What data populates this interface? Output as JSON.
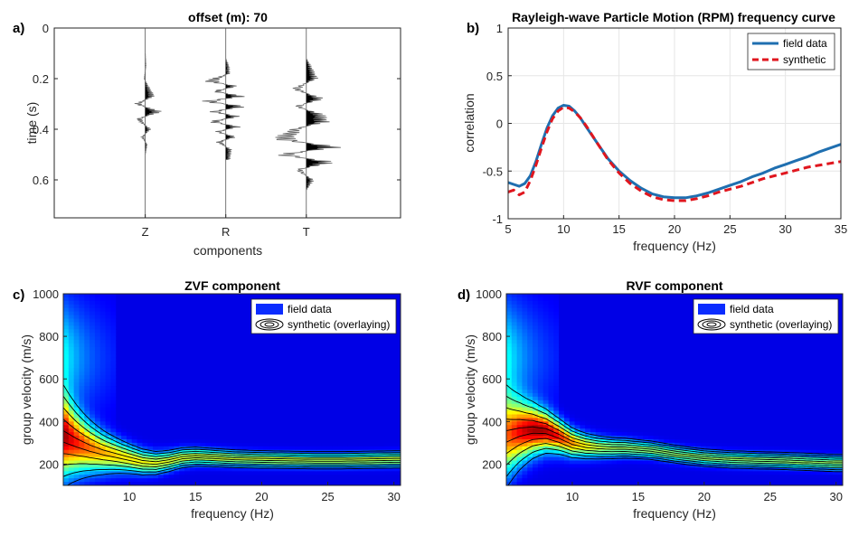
{
  "chart_data": [
    {
      "type": "line",
      "panel_label": "a)",
      "title": "offset (m): 70",
      "xlabel": "components",
      "ylabel": "time (s)",
      "categories": [
        "Z",
        "R",
        "T"
      ],
      "ylim": [
        0,
        0.75
      ],
      "y_reversed": true,
      "yticks": [
        0,
        0.2,
        0.4,
        0.6
      ],
      "ytick_labels": [
        "0",
        "0.2",
        "0.4",
        "0.6"
      ],
      "traces": [
        {
          "name": "Z",
          "t": [
            0.1,
            0.15,
            0.2,
            0.24,
            0.27,
            0.3,
            0.33,
            0.36,
            0.4,
            0.43,
            0.46,
            0.5
          ],
          "amp": [
            0.0,
            0.02,
            -0.03,
            0.12,
            0.25,
            -0.3,
            0.45,
            -0.25,
            0.15,
            -0.1,
            0.05,
            0.0
          ]
        },
        {
          "name": "R",
          "t": [
            0.12,
            0.15,
            0.18,
            0.21,
            0.23,
            0.25,
            0.27,
            0.29,
            0.31,
            0.33,
            0.35,
            0.37,
            0.39,
            0.41,
            0.43,
            0.45,
            0.48,
            0.52
          ],
          "amp": [
            0.0,
            0.08,
            0.1,
            -0.6,
            0.35,
            -0.4,
            0.55,
            -0.7,
            0.6,
            -0.45,
            0.4,
            -0.5,
            0.4,
            -0.3,
            0.3,
            -0.25,
            0.15,
            0.1
          ]
        },
        {
          "name": "T",
          "t": [
            0.12,
            0.15,
            0.2,
            0.24,
            0.28,
            0.31,
            0.34,
            0.37,
            0.4,
            0.44,
            0.47,
            0.5,
            0.53,
            0.56,
            0.6,
            0.64
          ],
          "amp": [
            0.0,
            0.12,
            0.3,
            -0.4,
            0.5,
            -0.35,
            0.45,
            0.6,
            -0.4,
            -0.9,
            1.0,
            -0.85,
            0.8,
            -0.3,
            0.2,
            0.0
          ]
        }
      ]
    },
    {
      "type": "line",
      "panel_label": "b)",
      "title": "Rayleigh-wave Particle Motion (RPM) frequency curve",
      "xlabel": "frequency (Hz)",
      "ylabel": "correlation",
      "xlim": [
        5,
        35
      ],
      "ylim": [
        -1,
        1
      ],
      "xticks": [
        5,
        10,
        15,
        20,
        25,
        30,
        35
      ],
      "yticks": [
        1,
        0.5,
        0,
        -0.5,
        -1
      ],
      "ytick_labels": [
        "1",
        "0.5",
        "0",
        "-0.5",
        "-1"
      ],
      "grid": true,
      "legend_position": "top-right",
      "series": [
        {
          "name": "field data",
          "color": "#1f6fb0",
          "style": "solid",
          "x": [
            5,
            5.5,
            6,
            6.5,
            7,
            7.5,
            8,
            8.5,
            9,
            9.5,
            10,
            10.5,
            11,
            11.5,
            12,
            13,
            14,
            15,
            16,
            17,
            18,
            19,
            20,
            21,
            22,
            23,
            24,
            25,
            26,
            27,
            28,
            29,
            30,
            31,
            32,
            33,
            34,
            35
          ],
          "y": [
            -0.62,
            -0.64,
            -0.66,
            -0.63,
            -0.55,
            -0.4,
            -0.22,
            -0.05,
            0.08,
            0.16,
            0.19,
            0.18,
            0.13,
            0.06,
            -0.03,
            -0.2,
            -0.37,
            -0.5,
            -0.6,
            -0.68,
            -0.74,
            -0.77,
            -0.78,
            -0.78,
            -0.76,
            -0.73,
            -0.69,
            -0.65,
            -0.61,
            -0.56,
            -0.52,
            -0.47,
            -0.43,
            -0.39,
            -0.35,
            -0.3,
            -0.26,
            -0.22
          ]
        },
        {
          "name": "synthetic",
          "color": "#e0161e",
          "style": "dashed",
          "x": [
            5,
            5.5,
            6,
            6.5,
            7,
            7.5,
            8,
            8.5,
            9,
            9.5,
            10,
            10.5,
            11,
            11.5,
            12,
            13,
            14,
            15,
            16,
            17,
            18,
            19,
            20,
            21,
            22,
            23,
            24,
            25,
            26,
            27,
            28,
            29,
            30,
            31,
            32,
            33,
            34,
            35
          ],
          "y": [
            -0.72,
            -0.7,
            -0.75,
            -0.72,
            -0.6,
            -0.44,
            -0.26,
            -0.09,
            0.05,
            0.13,
            0.17,
            0.16,
            0.12,
            0.06,
            -0.02,
            -0.2,
            -0.38,
            -0.52,
            -0.63,
            -0.71,
            -0.77,
            -0.8,
            -0.81,
            -0.81,
            -0.79,
            -0.76,
            -0.72,
            -0.69,
            -0.66,
            -0.62,
            -0.58,
            -0.55,
            -0.52,
            -0.49,
            -0.46,
            -0.44,
            -0.42,
            -0.4
          ]
        }
      ]
    },
    {
      "type": "heatmap",
      "panel_label": "c)",
      "title": "ZVF component",
      "xlabel": "frequency (Hz)",
      "ylabel": "group velocity (m/s)",
      "xlim": [
        5,
        30.5
      ],
      "ylim": [
        100,
        1000
      ],
      "xticks": [
        10,
        15,
        20,
        25,
        30
      ],
      "yticks": [
        1000,
        800,
        600,
        400,
        200
      ],
      "legend": [
        {
          "name": "field data",
          "color": "#0a2cff"
        },
        {
          "name": "synthetic (overlaying)"
        }
      ],
      "ridge": {
        "freq": [
          5,
          6,
          7,
          8,
          9,
          10,
          11,
          12,
          13,
          14,
          15,
          16,
          18,
          20,
          22,
          24,
          26,
          28,
          30
        ],
        "vel": [
          330,
          300,
          275,
          255,
          240,
          225,
          210,
          205,
          215,
          230,
          235,
          232,
          225,
          222,
          220,
          218,
          218,
          220,
          222
        ]
      },
      "contour_levels": 10,
      "contour_color": "#000000"
    },
    {
      "type": "heatmap",
      "panel_label": "d)",
      "title": "RVF component",
      "xlabel": "frequency (Hz)",
      "ylabel": "group velocity (m/s)",
      "xlim": [
        5,
        30.5
      ],
      "ylim": [
        100,
        1000
      ],
      "xticks": [
        10,
        15,
        20,
        25,
        30
      ],
      "yticks": [
        1000,
        800,
        600,
        400,
        200
      ],
      "legend": [
        {
          "name": "field data",
          "color": "#0a2cff"
        },
        {
          "name": "synthetic (overlaying)"
        }
      ],
      "ridge": {
        "freq": [
          5,
          6,
          7,
          8,
          9,
          10,
          11,
          12,
          13,
          14,
          15,
          16,
          18,
          20,
          22,
          24,
          26,
          28,
          30
        ],
        "vel": [
          330,
          350,
          360,
          355,
          330,
          300,
          285,
          278,
          275,
          275,
          270,
          265,
          245,
          230,
          222,
          218,
          215,
          210,
          205
        ]
      },
      "contour_levels": 10,
      "contour_color": "#000000"
    }
  ]
}
